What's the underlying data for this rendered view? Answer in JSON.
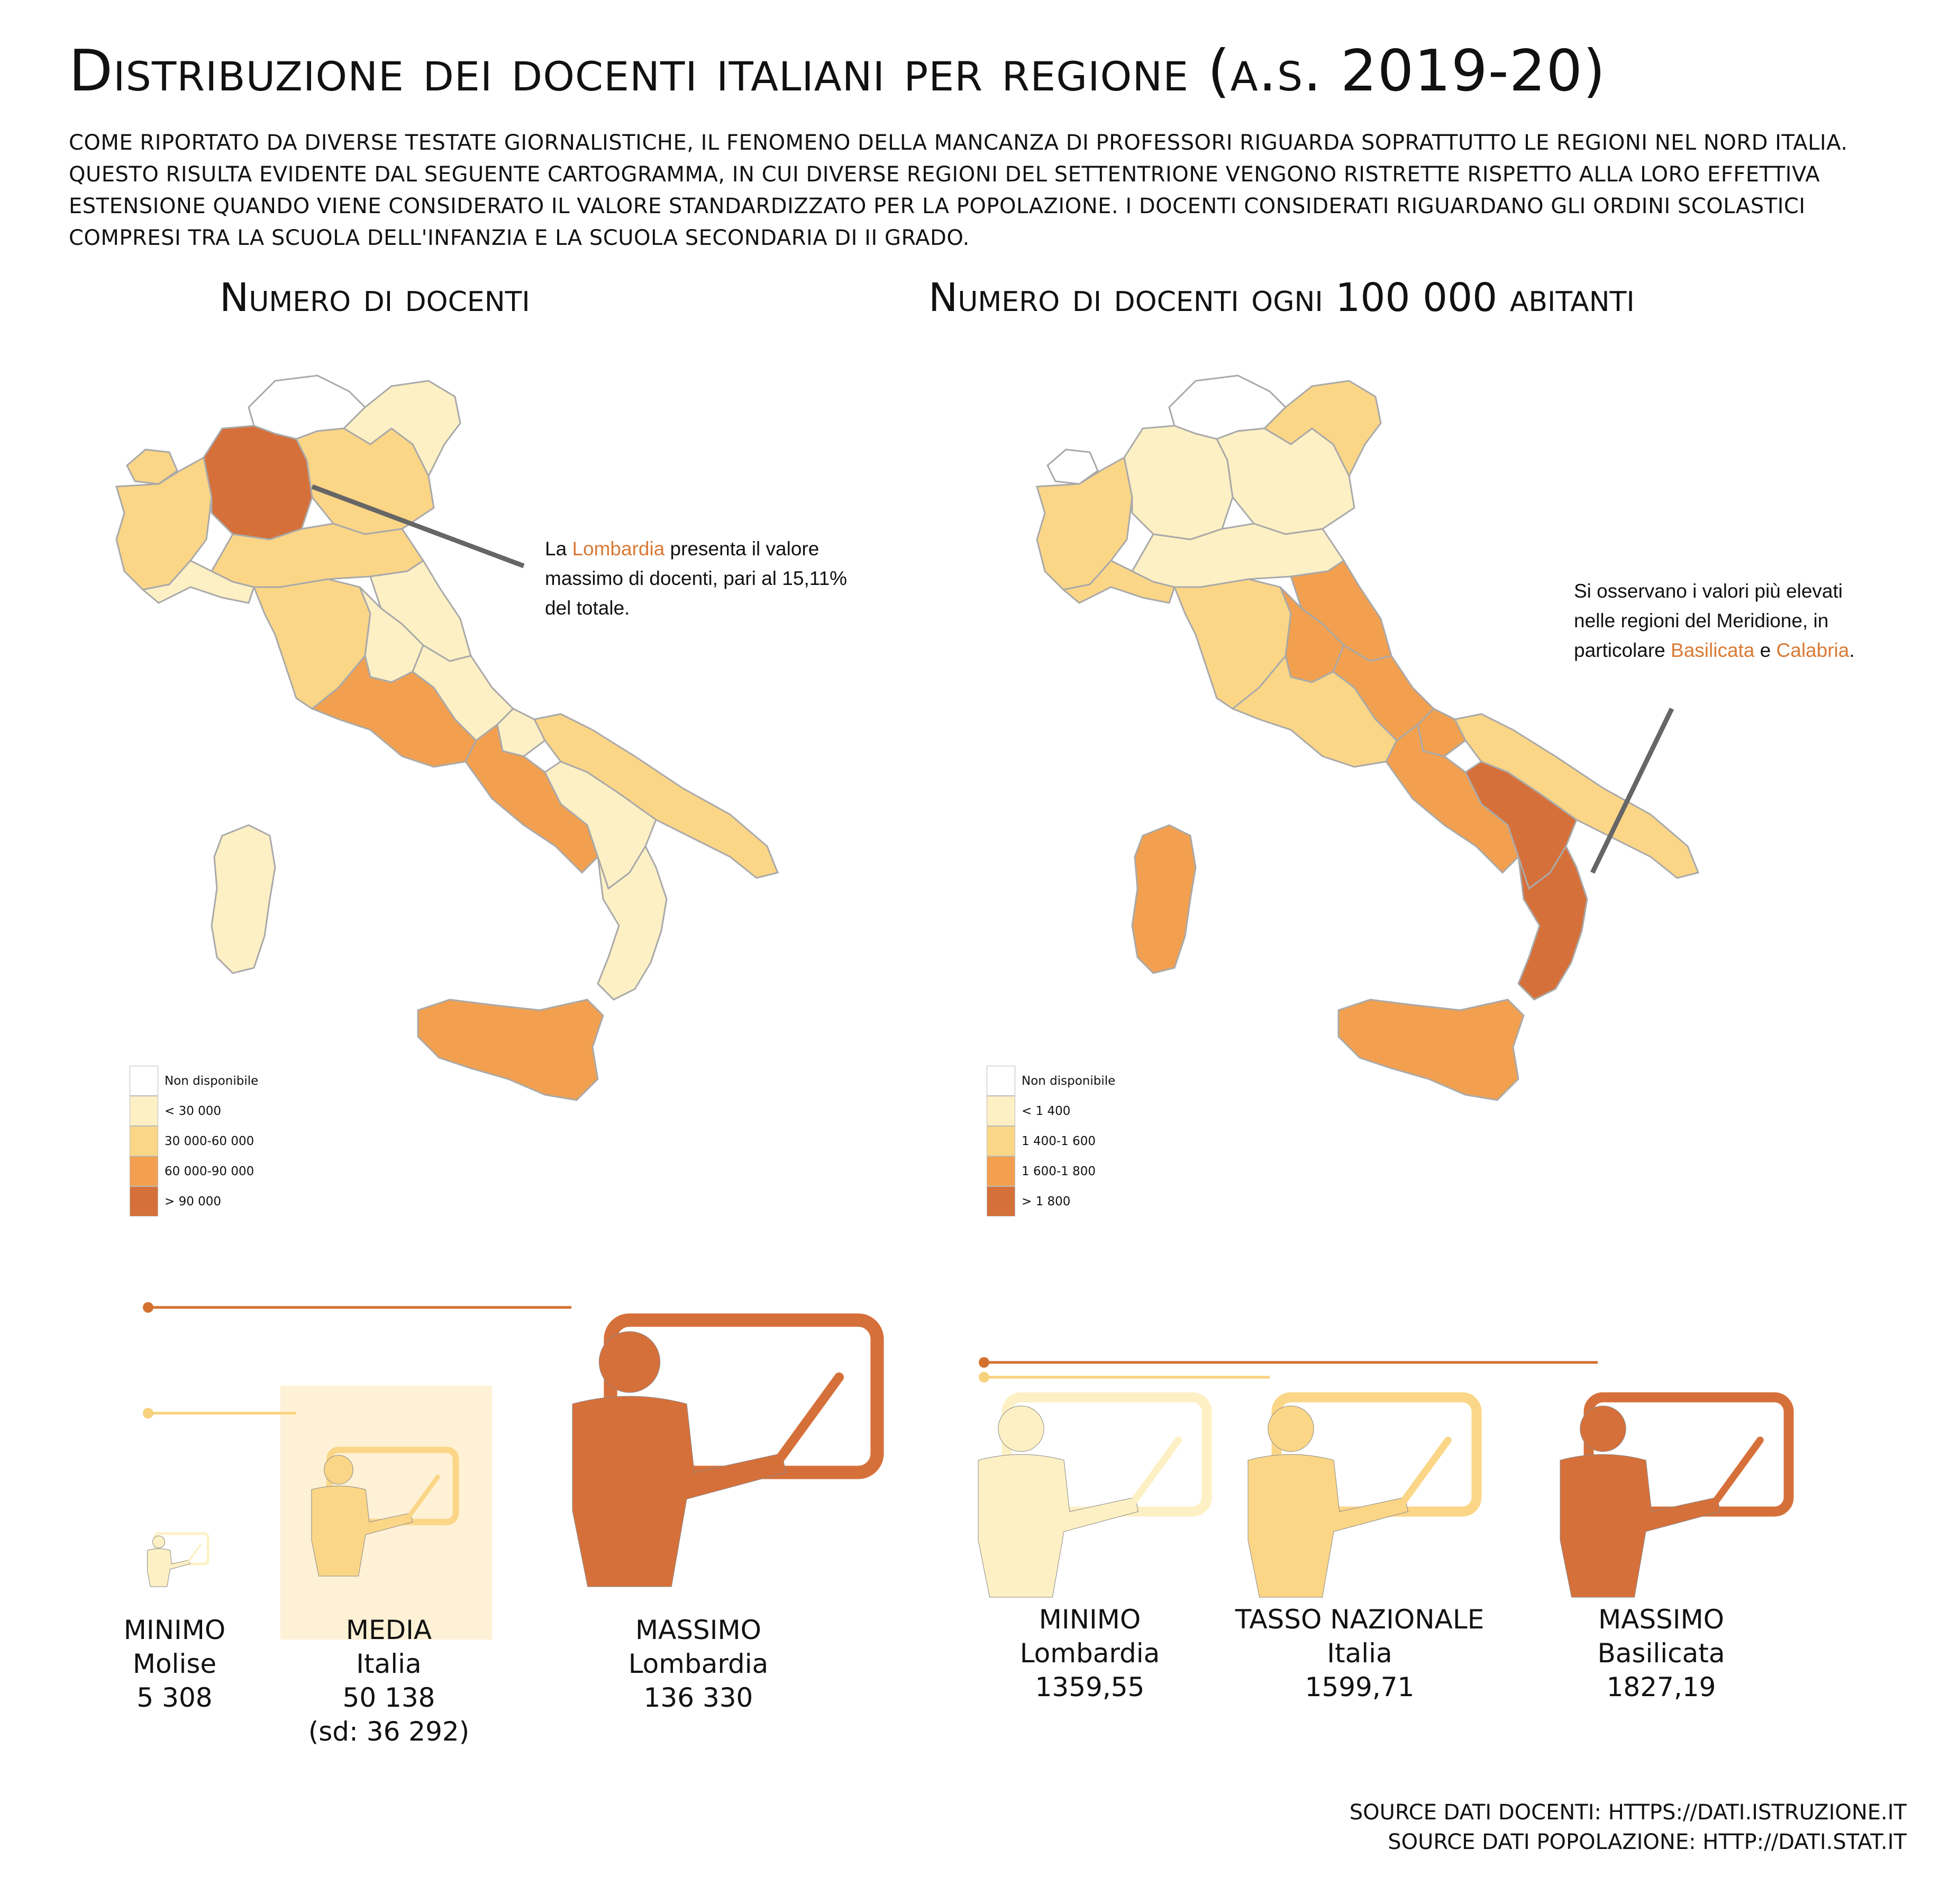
{
  "title": "Distribuzione dei docenti italiani per regione (a.s. 2019-20)",
  "intro": "Come riportato da diverse testate giornalistiche, il fenomeno della mancanza di professori riguarda soprattutto le regioni nel nord Italia. Questo risulta evidente dal seguente cartogramma, in cui diverse regioni del settentrione vengono ristrette rispetto alla loro effettiva estensione quando viene considerato il valore standardizzato per la popolazione. I docenti considerati riguardano gli ordini scolastici compresi tra la scuola dell'infanzia e la scuola secondaria di II grado.",
  "colors": {
    "na": "#ffffff",
    "c1": "#fdf0c4",
    "c2": "#fbd687",
    "c3": "#f2a04f",
    "c4": "#d6703a",
    "border": "#a9a9a9",
    "line": "#666666",
    "accent_dark": "#d4712f",
    "accent_light": "#f8d17c"
  },
  "maps": {
    "left": {
      "title": "Numero di docenti",
      "legend": [
        {
          "label": "Non disponibile",
          "color": "#ffffff"
        },
        {
          "label": "< 30 000",
          "color": "#fdf0c4"
        },
        {
          "label": "30 000-60 000",
          "color": "#fbd687"
        },
        {
          "label": "60 000-90 000",
          "color": "#f2a04f"
        },
        {
          "label": "> 90 000",
          "color": "#d6703a"
        }
      ],
      "callout": {
        "pre": "La ",
        "highlight": "Lombardia",
        "post": " presenta il valore massimo di docenti, pari al 15,11% del totale."
      },
      "regions": {
        "trentino": "na",
        "valle": "c2",
        "piemonte": "c2",
        "lombardia": "c4",
        "veneto": "c2",
        "friuli": "c1",
        "liguria": "c1",
        "emilia": "c2",
        "toscana": "c2",
        "marche": "c1",
        "umbria": "c1",
        "lazio": "c3",
        "abruzzo": "c1",
        "molise": "c1",
        "campania": "c3",
        "puglia": "c2",
        "basilicata": "c1",
        "calabria": "c1",
        "sicilia": "c3",
        "sardegna": "c1"
      }
    },
    "right": {
      "title": "Numero di docenti ogni 100 000 abitanti",
      "legend": [
        {
          "label": "Non disponibile",
          "color": "#ffffff"
        },
        {
          "label": "< 1 400",
          "color": "#fdf0c4"
        },
        {
          "label": "1 400-1 600",
          "color": "#fbd687"
        },
        {
          "label": "1 600-1 800",
          "color": "#f2a04f"
        },
        {
          "label": "> 1 800",
          "color": "#d6703a"
        }
      ],
      "callout": {
        "pre": "Si osservano i  valori più elevati nelle regioni del Meridione, in particolare ",
        "highlight": "Basilicata",
        "mid": " e ",
        "highlight2": "Calabria",
        "post": "."
      },
      "regions": {
        "trentino": "na",
        "valle": "na",
        "piemonte": "c2",
        "lombardia": "c1",
        "veneto": "c1",
        "friuli": "c2",
        "liguria": "c2",
        "emilia": "c1",
        "toscana": "c2",
        "marche": "c3",
        "umbria": "c3",
        "lazio": "c2",
        "abruzzo": "c3",
        "molise": "c3",
        "campania": "c3",
        "puglia": "c2",
        "basilicata": "c4",
        "calabria": "c4",
        "sicilia": "c3",
        "sardegna": "c3"
      }
    }
  },
  "stats_left": [
    {
      "kind": "Minimo",
      "place": "Molise",
      "value": "5 308",
      "extra": "",
      "level": "c1",
      "relsize": 0.039
    },
    {
      "kind": "Media",
      "place": "Italia",
      "value": "50 138",
      "extra": "(sd: 36 292)",
      "level": "c2",
      "relsize": 0.368
    },
    {
      "kind": "Massimo",
      "place": "Lombardia",
      "value": "136 330",
      "extra": "",
      "level": "c4",
      "relsize": 1.0
    }
  ],
  "stats_right": [
    {
      "kind": "Minimo",
      "place": "Lombardia",
      "value": "1359,55",
      "level": "c1"
    },
    {
      "kind": "Tasso nazionale",
      "place": "Italia",
      "value": "1599,71",
      "level": "c2"
    },
    {
      "kind": "Massimo",
      "place": "Basilicata",
      "value": "1827,19",
      "level": "c4"
    }
  ],
  "sources": [
    "Source dati docenti: https://dati.istruzione.it",
    "Source dati popolazione: http://dati.stat.it"
  ]
}
